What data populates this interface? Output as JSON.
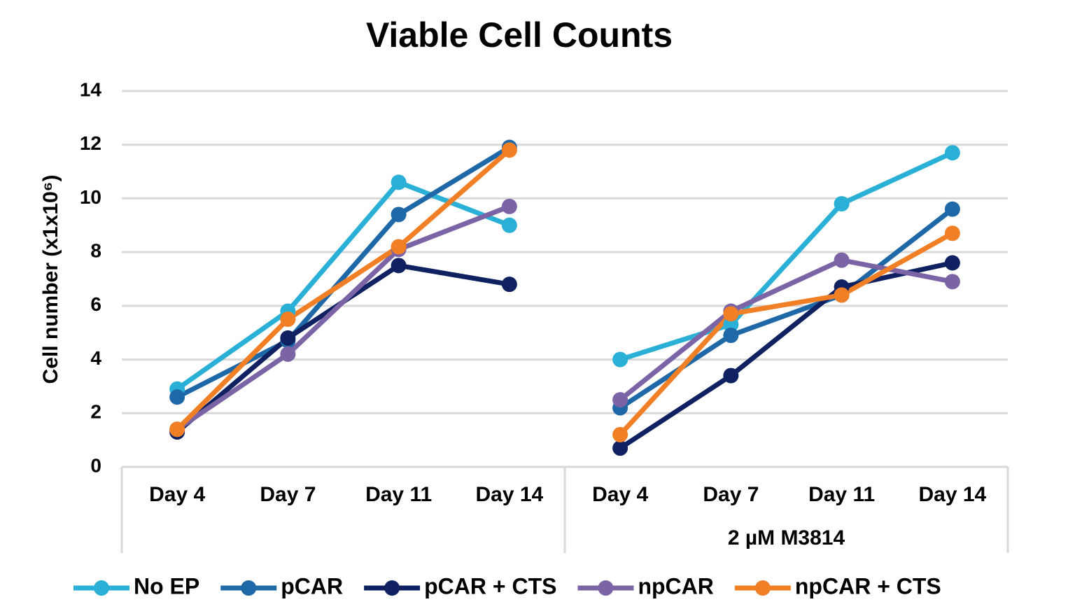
{
  "chart_data": {
    "type": "line",
    "title": "Viable Cell Counts",
    "y_label": "Cell number (x1x10⁶)",
    "groups": [
      {
        "categories": [
          "Day 4",
          "Day 7",
          "Day 11",
          "Day 14"
        ]
      },
      {
        "label": "2 µM M3814",
        "categories": [
          "Day 4",
          "Day 7",
          "Day 11",
          "Day 14"
        ]
      }
    ],
    "series": [
      {
        "name": "No EP",
        "color": "#2ab0d6",
        "values": [
          [
            2.9,
            5.8,
            10.6,
            9.0
          ],
          [
            4.0,
            5.3,
            9.8,
            11.7
          ]
        ]
      },
      {
        "name": "pCAR",
        "color": "#1f68a8",
        "values": [
          [
            2.6,
            4.7,
            9.4,
            11.9
          ],
          [
            2.2,
            4.9,
            6.4,
            9.6
          ]
        ]
      },
      {
        "name": "pCAR + CTS",
        "color": "#0f2161",
        "values": [
          [
            1.3,
            4.8,
            7.5,
            6.8
          ],
          [
            0.7,
            3.4,
            6.7,
            7.6
          ]
        ]
      },
      {
        "name": "npCAR",
        "color": "#7b64a6",
        "values": [
          [
            1.4,
            4.2,
            8.1,
            9.7
          ],
          [
            2.5,
            5.8,
            7.7,
            6.9
          ]
        ]
      },
      {
        "name": "npCAR + CTS",
        "color": "#f07f25",
        "values": [
          [
            1.4,
            5.5,
            8.2,
            11.8
          ],
          [
            1.2,
            5.7,
            6.4,
            8.7
          ]
        ]
      }
    ],
    "ylim": [
      0,
      14
    ],
    "yticks": [
      0,
      2,
      4,
      6,
      8,
      10,
      12,
      14
    ],
    "grid": true,
    "legend": "bottom"
  }
}
